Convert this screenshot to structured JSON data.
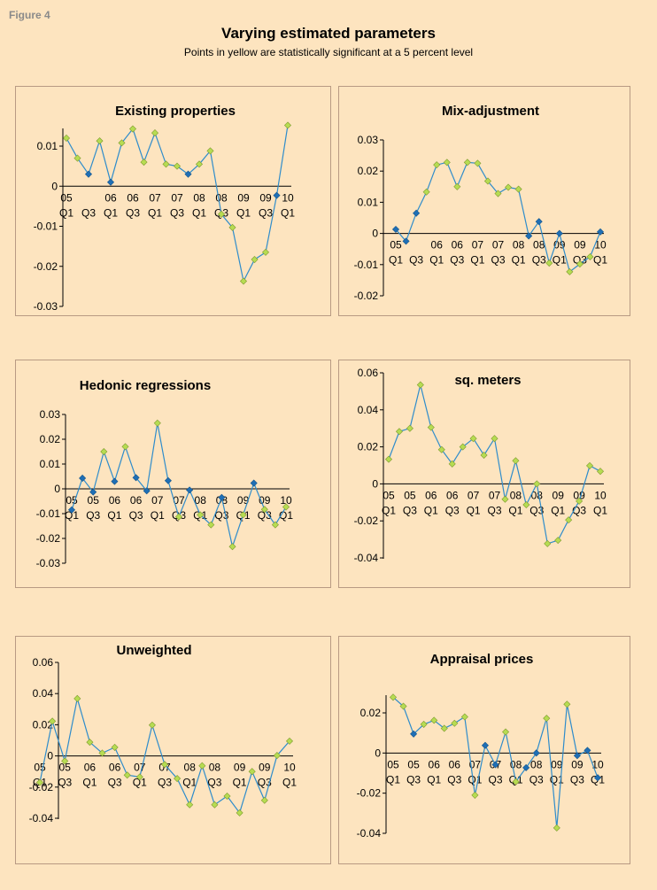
{
  "figure_label": "Figure 4",
  "title": "Varying estimated parameters",
  "subtitle": "Points in yellow are statistically significant at a 5 percent level",
  "colors": {
    "line": "#2e8ccb",
    "significant": "#b7dc52",
    "not_significant": "#1f6fb5",
    "background": "#fde4bf"
  },
  "chart_data": [
    {
      "type": "line",
      "title": "Existing properties",
      "ylim": [
        -0.03,
        0.015
      ],
      "yticks": [
        0.01,
        0,
        -0.01,
        -0.02,
        -0.03
      ],
      "ytick_labels": [
        "0.01",
        "0",
        "-0.01",
        "-0.02",
        "-0.03"
      ],
      "x_tick_labels": [
        [
          "05",
          "Q1"
        ],
        [
          "",
          "Q3"
        ],
        [
          "06",
          "Q1"
        ],
        [
          "06",
          "Q3"
        ],
        [
          "07",
          "Q1"
        ],
        [
          "07",
          "Q3"
        ],
        [
          "08",
          "Q1"
        ],
        [
          "08",
          "Q3"
        ],
        [
          "09",
          "Q1"
        ],
        [
          "09",
          "Q3"
        ],
        [
          "10",
          "Q1"
        ]
      ],
      "values": [
        0.012,
        0.007,
        0.003,
        0.0113,
        0.001,
        0.0108,
        0.0143,
        0.006,
        0.0133,
        0.0055,
        0.005,
        0.003,
        0.0055,
        0.0088,
        -0.007,
        -0.0103,
        -0.0237,
        -0.0183,
        -0.0165,
        -0.0023,
        0.0152
      ],
      "significant": [
        true,
        true,
        false,
        true,
        false,
        true,
        true,
        true,
        true,
        true,
        true,
        false,
        true,
        true,
        true,
        true,
        true,
        true,
        true,
        false,
        true
      ]
    },
    {
      "type": "line",
      "title": "Mix-adjustment",
      "ylim": [
        -0.02,
        0.03
      ],
      "yticks": [
        0.03,
        0.02,
        0.01,
        0,
        -0.01,
        -0.02
      ],
      "ytick_labels": [
        "0.03",
        "0.02",
        "0.01",
        "0",
        "-0.01",
        "-0.02"
      ],
      "x_tick_labels": [
        [
          "05",
          "Q1"
        ],
        [
          "",
          "Q3"
        ],
        [
          "06",
          "Q1"
        ],
        [
          "06",
          "Q3"
        ],
        [
          "07",
          "Q1"
        ],
        [
          "07",
          "Q3"
        ],
        [
          "08",
          "Q1"
        ],
        [
          "08",
          "Q3"
        ],
        [
          "09",
          "Q1"
        ],
        [
          "09",
          "Q3"
        ],
        [
          "10",
          "Q1"
        ]
      ],
      "values": [
        0.0013,
        -0.0025,
        0.0065,
        0.0133,
        0.022,
        0.0228,
        0.015,
        0.0228,
        0.0225,
        0.0168,
        0.0128,
        0.0148,
        0.0142,
        -0.0008,
        0.0038,
        -0.0095,
        0.0,
        -0.0123,
        -0.0098,
        -0.0075,
        0.0005
      ],
      "significant": [
        false,
        false,
        false,
        true,
        true,
        true,
        true,
        true,
        true,
        true,
        true,
        true,
        true,
        false,
        false,
        true,
        false,
        true,
        true,
        true,
        false
      ]
    },
    {
      "type": "line",
      "title": "Hedonic regressions",
      "ylim": [
        -0.03,
        0.03
      ],
      "yticks": [
        0.03,
        0.02,
        0.01,
        0,
        -0.01,
        -0.02,
        -0.03
      ],
      "ytick_labels": [
        "0.03",
        "0.02",
        "0.01",
        "0",
        "-0.01",
        "-0.02",
        "-0.03"
      ],
      "x_tick_labels": [
        [
          "05",
          "Q1"
        ],
        [
          "05",
          "Q3"
        ],
        [
          "06",
          "Q1"
        ],
        [
          "06",
          "Q3"
        ],
        [
          "07",
          "Q1"
        ],
        [
          "07",
          "Q3"
        ],
        [
          "08",
          "Q1"
        ],
        [
          "08",
          "Q3"
        ],
        [
          "09",
          "Q1"
        ],
        [
          "09",
          "Q3"
        ],
        [
          "10",
          "Q1"
        ]
      ],
      "values": [
        -0.0085,
        0.0043,
        -0.0013,
        0.015,
        0.003,
        0.017,
        0.0045,
        -0.0008,
        0.0265,
        0.0033,
        -0.0113,
        -0.0005,
        -0.0105,
        -0.0145,
        -0.0035,
        -0.0233,
        -0.0105,
        0.0023,
        -0.0083,
        -0.0145,
        -0.0073
      ],
      "significant": [
        false,
        false,
        false,
        true,
        false,
        true,
        false,
        false,
        true,
        false,
        true,
        false,
        true,
        true,
        false,
        true,
        true,
        false,
        true,
        true,
        true
      ]
    },
    {
      "type": "line",
      "title": "sq. meters",
      "ylim": [
        -0.04,
        0.06
      ],
      "yticks": [
        0.06,
        0.04,
        0.02,
        0,
        -0.02,
        -0.04
      ],
      "ytick_labels": [
        "0.06",
        "0.04",
        "0.02",
        "0",
        "-0.02",
        "-0.04"
      ],
      "x_tick_labels": [
        [
          "05",
          "Q1"
        ],
        [
          "05",
          "Q3"
        ],
        [
          "06",
          "Q1"
        ],
        [
          "06",
          "Q3"
        ],
        [
          "07",
          "Q1"
        ],
        [
          "07",
          "Q3"
        ],
        [
          "08",
          "Q1"
        ],
        [
          "08",
          "Q3"
        ],
        [
          "09",
          "Q1"
        ],
        [
          "09",
          "Q3"
        ],
        [
          "10",
          "Q1"
        ]
      ],
      "values": [
        0.0133,
        0.0283,
        0.03,
        0.0535,
        0.0305,
        0.0185,
        0.0108,
        0.02,
        0.0245,
        0.0155,
        0.0245,
        -0.0083,
        0.0125,
        -0.0113,
        0.0,
        -0.0323,
        -0.0305,
        -0.0195,
        -0.0093,
        0.0098,
        0.0068
      ],
      "significant": [
        true,
        true,
        true,
        true,
        true,
        true,
        true,
        true,
        true,
        true,
        true,
        true,
        true,
        true,
        true,
        true,
        true,
        true,
        true,
        true,
        true
      ]
    },
    {
      "type": "line",
      "title": "Unweighted",
      "ylim": [
        -0.04,
        0.06
      ],
      "yticks": [
        0.06,
        0.04,
        0.02,
        0,
        -0.02,
        -0.04
      ],
      "ytick_labels": [
        "0.06",
        "0.04",
        "0.02",
        "0",
        "-0.02",
        "-0.04"
      ],
      "x_tick_labels": [
        [
          "05",
          "Q1"
        ],
        [
          "05",
          "Q3"
        ],
        [
          "06",
          "Q1"
        ],
        [
          "06",
          "Q3"
        ],
        [
          "07",
          "Q1"
        ],
        [
          "07",
          "Q3"
        ],
        [
          "08",
          "Q1"
        ],
        [
          "08",
          "Q3"
        ],
        [
          "09",
          "Q1"
        ],
        [
          "09",
          "Q3"
        ],
        [
          "10",
          "Q1"
        ]
      ],
      "values": [
        -0.017,
        0.0223,
        -0.0033,
        0.0368,
        0.0088,
        0.0018,
        0.0055,
        -0.0123,
        -0.0135,
        0.0198,
        -0.0055,
        -0.0145,
        -0.0313,
        -0.0063,
        -0.0313,
        -0.0258,
        -0.0365,
        -0.01,
        -0.0285,
        0.0003,
        0.0095
      ],
      "significant": [
        true,
        true,
        true,
        true,
        true,
        true,
        true,
        true,
        true,
        true,
        true,
        true,
        true,
        true,
        true,
        true,
        true,
        true,
        true,
        true,
        true
      ]
    },
    {
      "type": "line",
      "title": "Appraisal prices",
      "ylim": [
        -0.04,
        0.03
      ],
      "yticks": [
        0.02,
        0,
        -0.02,
        -0.04
      ],
      "ytick_labels": [
        "0.02",
        "0",
        "-0.02",
        "-0.04"
      ],
      "x_tick_labels": [
        [
          "05",
          "Q1"
        ],
        [
          "05",
          "Q3"
        ],
        [
          "06",
          "Q1"
        ],
        [
          "06",
          "Q3"
        ],
        [
          "07",
          "Q1"
        ],
        [
          "07",
          "Q3"
        ],
        [
          "08",
          "Q1"
        ],
        [
          "08",
          "Q3"
        ],
        [
          "09",
          "Q1"
        ],
        [
          "09",
          "Q3"
        ],
        [
          "10",
          "Q1"
        ]
      ],
      "values": [
        0.0278,
        0.0233,
        0.0095,
        0.0143,
        0.0163,
        0.0123,
        0.0148,
        0.018,
        -0.021,
        0.0038,
        -0.0058,
        0.0105,
        -0.0143,
        -0.0073,
        0.0,
        0.0173,
        -0.0373,
        0.0243,
        -0.0013,
        0.0013,
        -0.0123
      ],
      "significant": [
        true,
        true,
        false,
        true,
        true,
        true,
        true,
        true,
        true,
        false,
        false,
        true,
        true,
        false,
        false,
        true,
        true,
        true,
        false,
        false,
        false
      ]
    }
  ]
}
